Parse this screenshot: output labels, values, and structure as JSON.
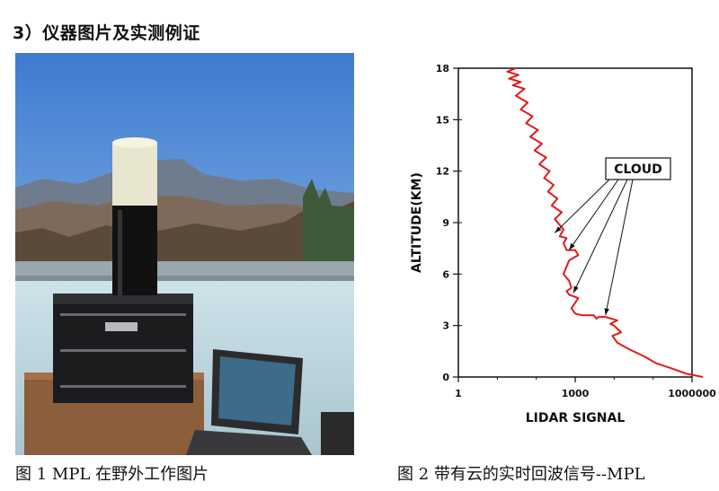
{
  "heading": "3）仪器图片及实测例证",
  "photo": {
    "alt": "MPL lidar instrument on a rooftop with mountains behind",
    "sky_top": "#3d7bd0",
    "sky_bottom": "#a9c9ec"
  },
  "captions": {
    "left": "图 1 MPL 在野外工作图片",
    "right": "图 2 带有云的实时回波信号--MPL"
  },
  "chart_data": {
    "type": "line",
    "xlabel": "LIDAR SIGNAL",
    "ylabel": "ALTITUDE(KM)",
    "x_scale": "log",
    "xlim": [
      1,
      1000000
    ],
    "ylim": [
      0,
      18
    ],
    "x_ticks": [
      1,
      1000,
      1000000
    ],
    "x_tick_labels": [
      "1",
      "1000",
      "1000000"
    ],
    "y_ticks": [
      0,
      3,
      6,
      9,
      12,
      15,
      18
    ],
    "y_tick_labels": [
      "0",
      "3",
      "6",
      "9",
      "12",
      "15",
      "18"
    ],
    "annotation": "CLOUD",
    "line_color": "#e11a1a",
    "series": [
      {
        "x": [
          1900000,
          700000,
          300000,
          120000,
          60000,
          25000,
          12000,
          9000,
          15000,
          10000,
          8000,
          12000,
          6000,
          4000,
          3500,
          3000,
          2000,
          1500,
          1000,
          800,
          1200,
          700,
          600,
          800,
          700,
          500,
          700,
          1200,
          1000,
          600,
          500,
          600,
          400,
          500,
          300,
          450,
          250,
          350,
          200,
          280,
          160,
          220,
          120,
          180,
          90,
          140,
          70,
          110,
          55,
          80,
          40,
          60,
          30,
          50,
          25,
          40,
          20,
          35,
          18,
          30
        ],
        "y": [
          0.0,
          0.2,
          0.5,
          0.8,
          1.2,
          1.6,
          2.0,
          2.4,
          2.6,
          3.0,
          3.1,
          3.3,
          3.5,
          3.5,
          3.4,
          3.6,
          3.6,
          3.6,
          3.7,
          4.0,
          4.6,
          4.8,
          5.0,
          5.2,
          5.6,
          6.0,
          6.8,
          7.1,
          7.4,
          7.4,
          7.8,
          8.1,
          8.2,
          8.6,
          9.2,
          9.6,
          10.0,
          10.4,
          10.8,
          11.2,
          11.6,
          12.0,
          12.4,
          12.8,
          13.2,
          13.6,
          14.0,
          14.4,
          14.8,
          15.2,
          15.6,
          16.0,
          16.4,
          16.8,
          17.0,
          17.2,
          17.4,
          17.6,
          17.8,
          18.0
        ]
      }
    ],
    "arrow_targets": [
      {
        "x": 300,
        "y": 8.4
      },
      {
        "x": 700,
        "y": 7.4
      },
      {
        "x": 900,
        "y": 4.9
      },
      {
        "x": 6000,
        "y": 3.6
      }
    ]
  }
}
